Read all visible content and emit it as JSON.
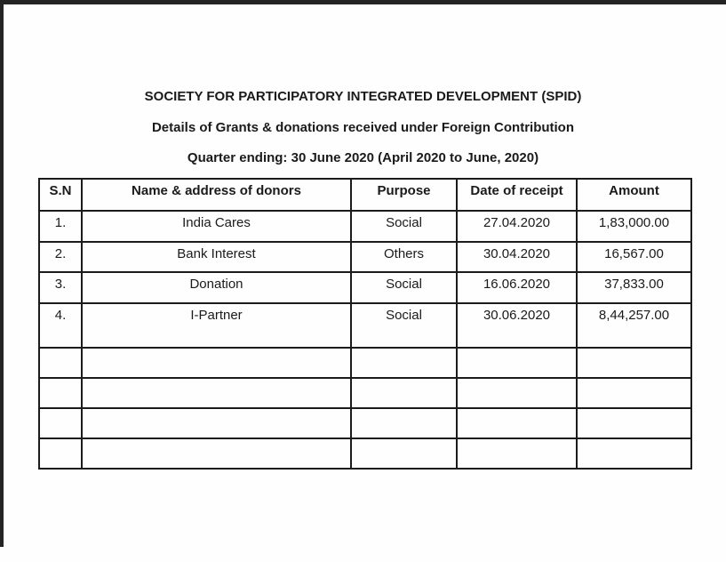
{
  "document": {
    "title": "SOCIETY FOR PARTICIPATORY INTEGRATED DEVELOPMENT (SPID)",
    "subtitle": "Details of Grants & donations received under Foreign Contribution",
    "quarter_line": "Quarter ending: 30 June 2020 (April 2020 to June, 2020)"
  },
  "table": {
    "headers": {
      "sn": "S.N",
      "name": "Name & address of donors",
      "purpose": "Purpose",
      "date": "Date of receipt",
      "amount": "Amount"
    },
    "rows": [
      {
        "sn": "1.",
        "name": "India Cares",
        "purpose": "Social",
        "date": "27.04.2020",
        "amount": "1,83,000.00"
      },
      {
        "sn": "2.",
        "name": "Bank Interest",
        "purpose": "Others",
        "date": "30.04.2020",
        "amount": "16,567.00"
      },
      {
        "sn": "3.",
        "name": "Donation",
        "purpose": "Social",
        "date": "16.06.2020",
        "amount": "37,833.00"
      },
      {
        "sn": "4.",
        "name": "I-Partner",
        "purpose": "Social",
        "date": "30.06.2020",
        "amount": "8,44,257.00"
      }
    ],
    "empty_row_count": 4
  },
  "colors": {
    "text": "#1a1a1a",
    "table_border": "#1b1b1b",
    "page_edge": "#242424",
    "background": "#fefefe"
  }
}
